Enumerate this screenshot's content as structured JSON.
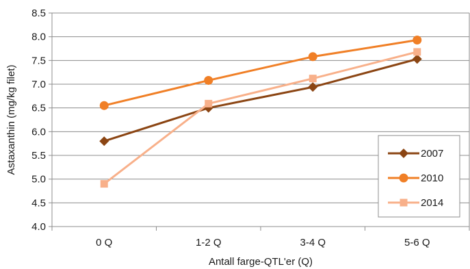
{
  "chart_data": {
    "type": "line",
    "title": "",
    "xlabel": "Antall farge-QTL'er (Q)",
    "ylabel": "Astaxanthin (mg/kg filet)",
    "categories": [
      "0 Q",
      "1-2 Q",
      "3-4 Q",
      "5-6 Q"
    ],
    "ylim": [
      4.0,
      8.5
    ],
    "yticks": [
      "4.0",
      "4.5",
      "5.0",
      "5.5",
      "6.0",
      "6.5",
      "7.0",
      "7.5",
      "8.0",
      "8.5"
    ],
    "grid": "horizontal",
    "legend_position": "bottom-right",
    "series": [
      {
        "name": "2007",
        "values": [
          5.8,
          6.5,
          6.94,
          7.53
        ],
        "color": "#8B4513",
        "marker": "diamond"
      },
      {
        "name": "2010",
        "values": [
          6.55,
          7.08,
          7.58,
          7.93
        ],
        "color": "#F07F26",
        "marker": "circle"
      },
      {
        "name": "2014",
        "values": [
          4.9,
          6.59,
          7.12,
          7.68
        ],
        "color": "#F8B08A",
        "marker": "square"
      }
    ]
  }
}
